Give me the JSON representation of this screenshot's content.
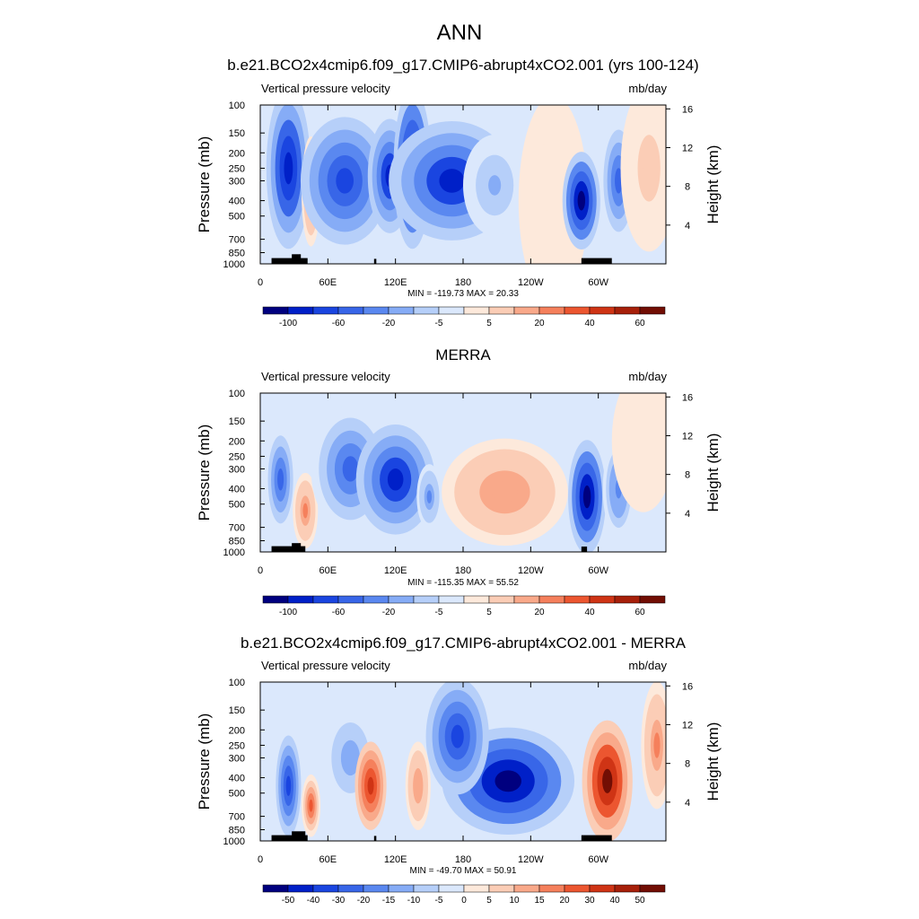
{
  "figure_title": "ANN",
  "colors": {
    "panel_scale": [
      "#00007f",
      "#0020c8",
      "#1a45e0",
      "#3866e8",
      "#5a88f0",
      "#86acf6",
      "#b6cff9",
      "#dbe8fc",
      "#fde9db",
      "#fbcdb6",
      "#f9a98a",
      "#f5805c",
      "#ec5630",
      "#cf3415",
      "#a7200a",
      "#720e04"
    ],
    "diff_scale": [
      "#00007f",
      "#0020c8",
      "#1a45e0",
      "#3866e8",
      "#5a88f0",
      "#86acf6",
      "#b6cff9",
      "#dbe8fc",
      "#fde9db",
      "#fbcdb6",
      "#f9a98a",
      "#f5805c",
      "#ec5630",
      "#cf3415",
      "#a7200a",
      "#720e04"
    ],
    "topography": "#000000"
  },
  "chart_data": [
    {
      "type": "heatmap",
      "title": "b.e21.BCO2x4cmip6.f09_g17.CMIP6-abrupt4xCO2.001 (yrs 100-124)",
      "variable": "Vertical pressure velocity",
      "units": "mb/day",
      "ylabel": "Pressure (mb)",
      "ylabel_right": "Height (km)",
      "xticks": [
        "0",
        "60E",
        "120E",
        "180",
        "120W",
        "60W"
      ],
      "xtick_values": [
        0,
        60,
        120,
        180,
        240,
        300
      ],
      "xlim": [
        0,
        360
      ],
      "yticks": [
        "100",
        "150",
        "200",
        "250",
        "300",
        "400",
        "500",
        "700",
        "850",
        "1000"
      ],
      "ytick_values": [
        100,
        150,
        200,
        250,
        300,
        400,
        500,
        700,
        850,
        1000
      ],
      "yticks_right": [
        "16",
        "12",
        "8",
        "4"
      ],
      "ytick_right_values": [
        16,
        12,
        8,
        4
      ],
      "ylim": [
        1000,
        100
      ],
      "stats": "MIN = -119.73  MAX =  20.33",
      "min": -119.73,
      "max": 20.33,
      "colorbar_labels": [
        "-100",
        "-60",
        "-20",
        "-5",
        "5",
        "20",
        "40",
        "60"
      ],
      "blobs": [
        {
          "lon": 25,
          "p": 250,
          "lw": 14,
          "pw": 350,
          "a": -60
        },
        {
          "lon": 45,
          "p": 350,
          "lw": 6,
          "pw": 300,
          "a": 25
        },
        {
          "lon": 75,
          "p": 300,
          "lw": 28,
          "pw": 300,
          "a": -45
        },
        {
          "lon": 115,
          "p": 280,
          "lw": 14,
          "pw": 250,
          "a": -55
        },
        {
          "lon": 135,
          "p": 250,
          "lw": 12,
          "pw": 350,
          "a": -70
        },
        {
          "lon": 170,
          "p": 300,
          "lw": 40,
          "pw": 280,
          "a": -55
        },
        {
          "lon": 208,
          "p": 320,
          "lw": 20,
          "pw": 250,
          "a": -20
        },
        {
          "lon": 260,
          "p": 400,
          "lw": 22,
          "pw": 600,
          "a": 8
        },
        {
          "lon": 285,
          "p": 400,
          "lw": 12,
          "pw": 300,
          "a": -70
        },
        {
          "lon": 318,
          "p": 300,
          "lw": 12,
          "pw": 300,
          "a": -40
        },
        {
          "lon": 345,
          "p": 250,
          "lw": 18,
          "pw": 400,
          "a": 12
        }
      ],
      "topography_bars": [
        [
          10,
          42,
          920
        ],
        [
          28,
          36,
          870
        ],
        [
          101,
          103,
          930
        ],
        [
          285,
          312,
          920
        ]
      ]
    },
    {
      "type": "heatmap",
      "title": "MERRA",
      "variable": "Vertical pressure velocity",
      "units": "mb/day",
      "ylabel": "Pressure (mb)",
      "ylabel_right": "Height (km)",
      "xticks": [
        "0",
        "60E",
        "120E",
        "180",
        "120W",
        "60W"
      ],
      "xtick_values": [
        0,
        60,
        120,
        180,
        240,
        300
      ],
      "xlim": [
        0,
        360
      ],
      "yticks": [
        "100",
        "150",
        "200",
        "250",
        "300",
        "400",
        "500",
        "700",
        "850",
        "1000"
      ],
      "ytick_values": [
        100,
        150,
        200,
        250,
        300,
        400,
        500,
        700,
        850,
        1000
      ],
      "yticks_right": [
        "16",
        "12",
        "8",
        "4"
      ],
      "ytick_right_values": [
        16,
        12,
        8,
        4
      ],
      "ylim": [
        1000,
        100
      ],
      "stats": "MIN = -115.35  MAX =  55.52",
      "min": -115.35,
      "max": 55.52,
      "colorbar_labels": [
        "-100",
        "-60",
        "-20",
        "-5",
        "5",
        "20",
        "40",
        "60"
      ],
      "blobs": [
        {
          "lon": 18,
          "p": 350,
          "lw": 10,
          "pw": 300,
          "a": -40
        },
        {
          "lon": 40,
          "p": 550,
          "lw": 8,
          "pw": 300,
          "a": 30
        },
        {
          "lon": 80,
          "p": 300,
          "lw": 25,
          "pw": 300,
          "a": -45
        },
        {
          "lon": 120,
          "p": 350,
          "lw": 25,
          "pw": 300,
          "a": -60
        },
        {
          "lon": 150,
          "p": 450,
          "lw": 8,
          "pw": 200,
          "a": -30
        },
        {
          "lon": 217,
          "p": 420,
          "lw": 40,
          "pw": 350,
          "a": 25
        },
        {
          "lon": 290,
          "p": 450,
          "lw": 12,
          "pw": 400,
          "a": -75
        },
        {
          "lon": 318,
          "p": 400,
          "lw": 10,
          "pw": 300,
          "a": -35
        },
        {
          "lon": 340,
          "p": 200,
          "lw": 20,
          "pw": 300,
          "a": 6
        }
      ],
      "topography_bars": [
        [
          10,
          40,
          920
        ],
        [
          28,
          36,
          880
        ],
        [
          285,
          290,
          925
        ]
      ]
    },
    {
      "type": "heatmap",
      "title": "b.e21.BCO2x4cmip6.f09_g17.CMIP6-abrupt4xCO2.001 - MERRA",
      "variable": "Vertical pressure velocity",
      "units": "mb/day",
      "ylabel": "Pressure (mb)",
      "ylabel_right": "Height (km)",
      "xticks": [
        "0",
        "60E",
        "120E",
        "180",
        "120W",
        "60W"
      ],
      "xtick_values": [
        0,
        60,
        120,
        180,
        240,
        300
      ],
      "xlim": [
        0,
        360
      ],
      "yticks": [
        "100",
        "150",
        "200",
        "250",
        "300",
        "400",
        "500",
        "700",
        "850",
        "1000"
      ],
      "ytick_values": [
        100,
        150,
        200,
        250,
        300,
        400,
        500,
        700,
        850,
        1000
      ],
      "yticks_right": [
        "16",
        "12",
        "8",
        "4"
      ],
      "ytick_right_values": [
        16,
        12,
        8,
        4
      ],
      "ylim": [
        1000,
        100
      ],
      "stats": "MIN = -49.70  MAX =  50.91",
      "min": -49.7,
      "max": 50.91,
      "colorbar_labels": [
        "-50",
        "-40",
        "-30",
        "-20",
        "-15",
        "-10",
        "-5",
        "0",
        "5",
        "10",
        "15",
        "20",
        "30",
        "40",
        "50"
      ],
      "blobs": [
        {
          "lon": 25,
          "p": 450,
          "lw": 8,
          "pw": 350,
          "a": -30
        },
        {
          "lon": 45,
          "p": 600,
          "lw": 6,
          "pw": 250,
          "a": 25
        },
        {
          "lon": 80,
          "p": 300,
          "lw": 15,
          "pw": 200,
          "a": -15
        },
        {
          "lon": 98,
          "p": 450,
          "lw": 10,
          "pw": 300,
          "a": 30
        },
        {
          "lon": 140,
          "p": 450,
          "lw": 8,
          "pw": 300,
          "a": 15
        },
        {
          "lon": 220,
          "p": 420,
          "lw": 42,
          "pw": 350,
          "a": -45
        },
        {
          "lon": 175,
          "p": 220,
          "lw": 20,
          "pw": 200,
          "a": -30
        },
        {
          "lon": 308,
          "p": 420,
          "lw": 16,
          "pw": 400,
          "a": 40
        },
        {
          "lon": 352,
          "p": 250,
          "lw": 10,
          "pw": 250,
          "a": 18
        }
      ],
      "topography_bars": [
        [
          10,
          42,
          920
        ],
        [
          28,
          40,
          870
        ],
        [
          101,
          103,
          930
        ],
        [
          285,
          312,
          920
        ]
      ]
    }
  ]
}
